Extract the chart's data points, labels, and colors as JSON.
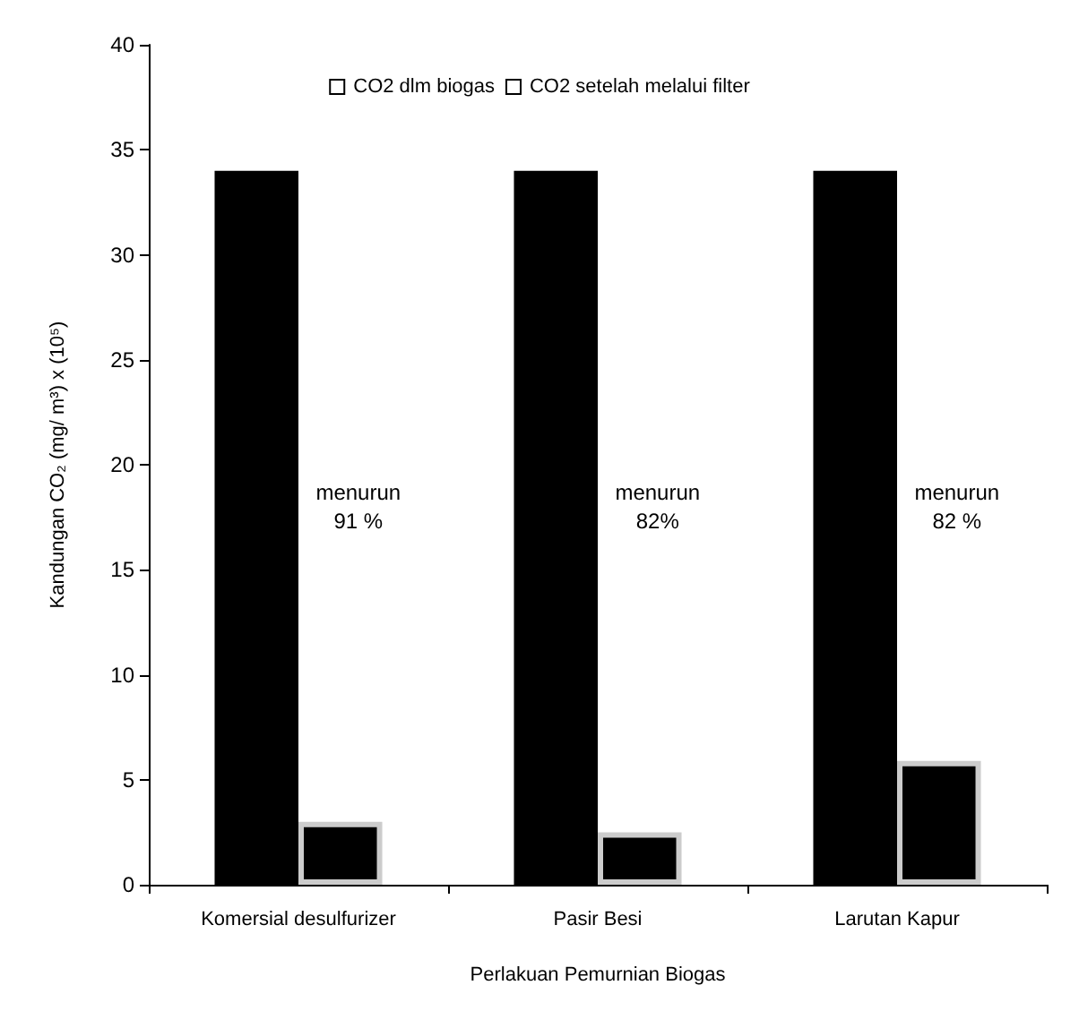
{
  "chart_data": {
    "type": "bar",
    "xlabel": "Perlakuan Pemurnian Biogas",
    "ylabel": "Kandungan CO₂ (mg/ m³) x (10⁵)",
    "categories": [
      "Komersial desulfurizer",
      "Pasir Besi",
      "Larutan Kapur"
    ],
    "series": [
      {
        "name": "CO2 dlm biogas",
        "color": "#000000",
        "values": [
          34,
          34,
          34
        ]
      },
      {
        "name": "CO2 setelah melalui filter",
        "color": "#000000",
        "values": [
          3.0,
          2.5,
          5.9
        ]
      }
    ],
    "ylim": [
      0,
      40
    ],
    "yticks": [
      0,
      5,
      10,
      15,
      20,
      25,
      30,
      35,
      40
    ],
    "grid": false,
    "legend": "top",
    "annotations": [
      {
        "text": "menurun\n91 %",
        "x": "Komersial desulfurizer",
        "y": 18
      },
      {
        "text": "menurun\n82%",
        "x": "Pasir Besi",
        "y": 18
      },
      {
        "text": "menurun\n82 %",
        "x": "Larutan Kapur",
        "y": 18
      }
    ]
  }
}
